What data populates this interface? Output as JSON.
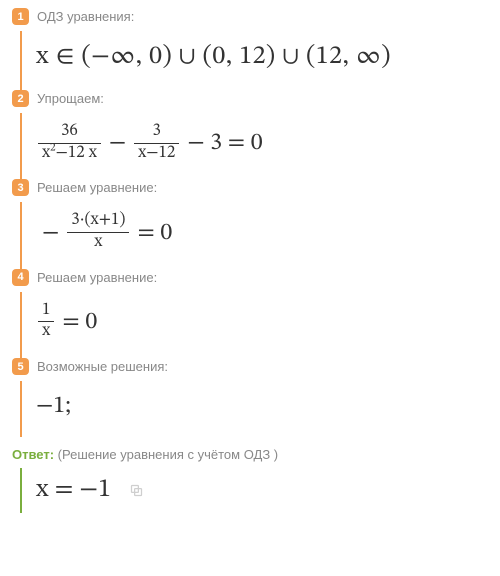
{
  "colors": {
    "badge_bg": "#f29b4c",
    "border": "#f29b4c",
    "label_text": "#888888",
    "math_text": "#333333",
    "answer_label": "#7aae3e",
    "answer_border": "#7aae3e"
  },
  "steps": [
    {
      "num": "1",
      "label": "ОДЗ уравнения:",
      "math_type": "domain",
      "math": "x ∈  (−∞, 0) ∪ (0, 12) ∪ (12, ∞)"
    },
    {
      "num": "2",
      "label": "Упрощаем:",
      "math_type": "eq2",
      "frac1_num": "36",
      "frac1_den_a": "x",
      "frac1_den_sup": "2",
      "frac1_den_b": "−12 x",
      "frac2_num": "3",
      "frac2_den": "x−12",
      "tail": "− 3 = 0"
    },
    {
      "num": "3",
      "label": "Решаем уравнение:",
      "math_type": "eq3",
      "lead": "−",
      "frac_num": "3·(x+1)",
      "frac_den": "x",
      "tail": "= 0"
    },
    {
      "num": "4",
      "label": "Решаем уравнение:",
      "math_type": "eq4",
      "frac_num": "1",
      "frac_den": "x",
      "tail": "= 0"
    },
    {
      "num": "5",
      "label": "Возможные решения:",
      "math_type": "plain",
      "math": "−1;"
    }
  ],
  "answer": {
    "label": "Ответ:",
    "hint": "(Решение уравнения с учётом ОДЗ )",
    "math": "x = −1"
  }
}
